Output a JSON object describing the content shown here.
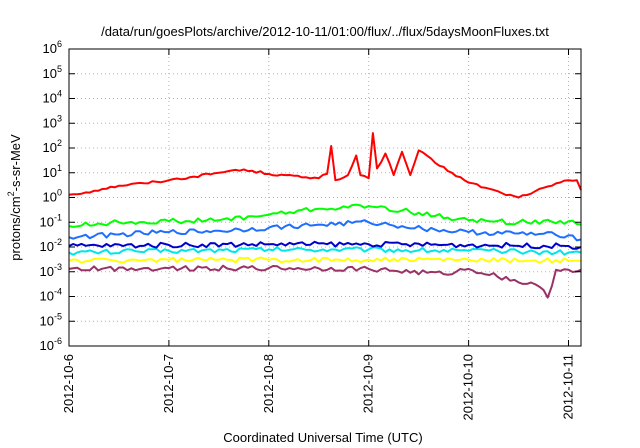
{
  "chart_data": {
    "type": "line",
    "title": "/data/run/goesPlots/archive/2012-10-11/01:00/flux/../flux/5daysMoonFluxes.txt",
    "xlabel": "Coordinated Universal Time (UTC)",
    "ylabel_parts": [
      "protons/cm",
      "2",
      "-s-sr-MeV"
    ],
    "y_scale": "log",
    "ylim": [
      1e-06,
      1000000.0
    ],
    "y_ticks": [
      {
        "base": "10",
        "exp": "-6",
        "value": 1e-06
      },
      {
        "base": "10",
        "exp": "-5",
        "value": 1e-05
      },
      {
        "base": "10",
        "exp": "-4",
        "value": 0.0001
      },
      {
        "base": "10",
        "exp": "-3",
        "value": 0.001
      },
      {
        "base": "10",
        "exp": "-2",
        "value": 0.01
      },
      {
        "base": "10",
        "exp": "-1",
        "value": 0.1
      },
      {
        "base": "10",
        "exp": "0",
        "value": 1
      },
      {
        "base": "10",
        "exp": "1",
        "value": 10
      },
      {
        "base": "10",
        "exp": "2",
        "value": 100
      },
      {
        "base": "10",
        "exp": "3",
        "value": 1000
      },
      {
        "base": "10",
        "exp": "4",
        "value": 10000
      },
      {
        "base": "10",
        "exp": "5",
        "value": 100000
      },
      {
        "base": "10",
        "exp": "6",
        "value": 1000000
      }
    ],
    "xlim": [
      "2012-10-06",
      "2012-10-11 03:00"
    ],
    "x_ticks": [
      "2012-10-6",
      "2012-10-7",
      "2012-10-8",
      "2012-10-9",
      "2012-10-10",
      "2012-10-11"
    ],
    "x_tick_dates": [
      "2012-10-06",
      "2012-10-07",
      "2012-10-08",
      "2012-10-09",
      "2012-10-10",
      "2012-10-11"
    ],
    "grid": true,
    "legend": "none",
    "series": [
      {
        "color": "#ff0000",
        "points": [
          [
            "2012-10-06 00:00",
            1.3
          ],
          [
            "2012-10-06 04:00",
            1.6
          ],
          [
            "2012-10-06 08:00",
            2.2
          ],
          [
            "2012-10-06 12:00",
            3.0
          ],
          [
            "2012-10-06 18:00",
            3.8
          ],
          [
            "2012-10-07 00:00",
            5.0
          ],
          [
            "2012-10-07 06:00",
            7.0
          ],
          [
            "2012-10-07 12:00",
            10
          ],
          [
            "2012-10-07 16:00",
            13
          ],
          [
            "2012-10-07 20:00",
            12
          ],
          [
            "2012-10-08 00:00",
            9
          ],
          [
            "2012-10-08 04:00",
            8
          ],
          [
            "2012-10-08 08:00",
            6.5
          ],
          [
            "2012-10-08 12:00",
            6
          ],
          [
            "2012-10-08 14:00",
            9
          ],
          [
            "2012-10-08 15:00",
            120
          ],
          [
            "2012-10-08 16:00",
            5
          ],
          [
            "2012-10-08 19:00",
            8
          ],
          [
            "2012-10-08 21:00",
            50
          ],
          [
            "2012-10-08 22:00",
            8
          ],
          [
            "2012-10-09 00:00",
            6
          ],
          [
            "2012-10-09 01:00",
            400
          ],
          [
            "2012-10-09 02:00",
            15
          ],
          [
            "2012-10-09 04:00",
            60
          ],
          [
            "2012-10-09 06:00",
            8
          ],
          [
            "2012-10-09 08:00",
            70
          ],
          [
            "2012-10-09 10:00",
            8
          ],
          [
            "2012-10-09 12:00",
            80
          ],
          [
            "2012-10-09 16:00",
            25
          ],
          [
            "2012-10-09 20:00",
            10
          ],
          [
            "2012-10-10 00:00",
            4
          ],
          [
            "2012-10-10 04:00",
            2.5
          ],
          [
            "2012-10-10 08:00",
            1.5
          ],
          [
            "2012-10-10 12:00",
            1.0
          ],
          [
            "2012-10-10 16:00",
            1.8
          ],
          [
            "2012-10-10 20:00",
            3.0
          ],
          [
            "2012-10-11 00:00",
            5
          ],
          [
            "2012-10-11 02:00",
            5
          ],
          [
            "2012-10-11 03:00",
            2
          ]
        ]
      },
      {
        "color": "#00ff00",
        "points": [
          [
            "2012-10-06 00:00",
            0.07
          ],
          [
            "2012-10-06 12:00",
            0.1
          ],
          [
            "2012-10-07 00:00",
            0.11
          ],
          [
            "2012-10-07 12:00",
            0.12
          ],
          [
            "2012-10-08 00:00",
            0.2
          ],
          [
            "2012-10-08 12:00",
            0.35
          ],
          [
            "2012-10-09 00:00",
            0.45
          ],
          [
            "2012-10-09 08:00",
            0.3
          ],
          [
            "2012-10-09 16:00",
            0.18
          ],
          [
            "2012-10-10 00:00",
            0.12
          ],
          [
            "2012-10-10 12:00",
            0.1
          ],
          [
            "2012-10-11 00:00",
            0.11
          ],
          [
            "2012-10-11 03:00",
            0.08
          ]
        ]
      },
      {
        "color": "#1e6fff",
        "points": [
          [
            "2012-10-06 00:00",
            0.025
          ],
          [
            "2012-10-06 12:00",
            0.032
          ],
          [
            "2012-10-07 00:00",
            0.04
          ],
          [
            "2012-10-07 12:00",
            0.045
          ],
          [
            "2012-10-08 00:00",
            0.06
          ],
          [
            "2012-10-08 12:00",
            0.08
          ],
          [
            "2012-10-09 00:00",
            0.1
          ],
          [
            "2012-10-09 08:00",
            0.07
          ],
          [
            "2012-10-09 16:00",
            0.05
          ],
          [
            "2012-10-10 00:00",
            0.04
          ],
          [
            "2012-10-10 12:00",
            0.035
          ],
          [
            "2012-10-11 00:00",
            0.03
          ],
          [
            "2012-10-11 03:00",
            0.02
          ]
        ]
      },
      {
        "color": "#00e5e5",
        "points": [
          [
            "2012-10-06 00:00",
            0.006
          ],
          [
            "2012-10-07 00:00",
            0.007
          ],
          [
            "2012-10-08 00:00",
            0.008
          ],
          [
            "2012-10-09 00:00",
            0.008
          ],
          [
            "2012-10-10 00:00",
            0.007
          ],
          [
            "2012-10-11 00:00",
            0.006
          ],
          [
            "2012-10-11 03:00",
            0.006
          ]
        ]
      },
      {
        "color": "#0000cc",
        "points": [
          [
            "2012-10-06 00:00",
            0.011
          ],
          [
            "2012-10-07 00:00",
            0.012
          ],
          [
            "2012-10-08 00:00",
            0.013
          ],
          [
            "2012-10-09 00:00",
            0.013
          ],
          [
            "2012-10-10 00:00",
            0.012
          ],
          [
            "2012-10-11 00:00",
            0.011
          ],
          [
            "2012-10-11 03:00",
            0.01
          ]
        ]
      },
      {
        "color": "#ffff00",
        "points": [
          [
            "2012-10-06 00:00",
            0.0028
          ],
          [
            "2012-10-07 00:00",
            0.003
          ],
          [
            "2012-10-08 00:00",
            0.003
          ],
          [
            "2012-10-09 00:00",
            0.0031
          ],
          [
            "2012-10-10 00:00",
            0.003
          ],
          [
            "2012-10-11 00:00",
            0.0028
          ],
          [
            "2012-10-11 03:00",
            0.0028
          ]
        ]
      },
      {
        "color": "#993366",
        "points": [
          [
            "2012-10-06 00:00",
            0.0013
          ],
          [
            "2012-10-07 00:00",
            0.0014
          ],
          [
            "2012-10-08 00:00",
            0.0014
          ],
          [
            "2012-10-09 00:00",
            0.0013
          ],
          [
            "2012-10-09 18:00",
            0.0008
          ],
          [
            "2012-10-10 00:00",
            0.0013
          ],
          [
            "2012-10-10 17:00",
            0.00025
          ],
          [
            "2012-10-10 19:00",
            9e-05
          ],
          [
            "2012-10-10 21:00",
            0.0012
          ],
          [
            "2012-10-11 00:00",
            0.0012
          ],
          [
            "2012-10-11 03:00",
            0.0012
          ]
        ]
      }
    ]
  }
}
